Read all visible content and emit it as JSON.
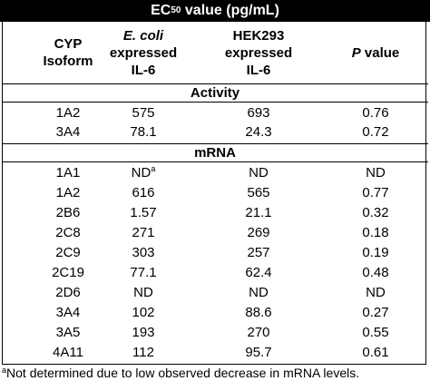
{
  "title": {
    "prefix": "EC",
    "sub": "50",
    "suffix": " value (pg/mL)"
  },
  "headers": {
    "cyp": [
      "CYP",
      "Isoform"
    ],
    "ecoli": [
      "E. coli",
      "expressed",
      "IL-6"
    ],
    "hek": [
      "HEK293",
      "expressed",
      "IL-6"
    ],
    "pvalue_p": "P",
    "pvalue_rest": " value"
  },
  "sections": {
    "activity": "Activity",
    "mrna": "mRNA"
  },
  "activity_rows": [
    {
      "isoform": "1A2",
      "ecoli": "575",
      "ecoli_sup": "",
      "hek": "693",
      "p": "0.76"
    },
    {
      "isoform": "3A4",
      "ecoli": "78.1",
      "ecoli_sup": "",
      "hek": "24.3",
      "p": "0.72"
    }
  ],
  "mrna_rows": [
    {
      "isoform": "1A1",
      "ecoli": "ND",
      "ecoli_sup": "a",
      "hek": "ND",
      "p": "ND"
    },
    {
      "isoform": "1A2",
      "ecoli": "616",
      "ecoli_sup": "",
      "hek": "565",
      "p": "0.77"
    },
    {
      "isoform": "2B6",
      "ecoli": "1.57",
      "ecoli_sup": "",
      "hek": "21.1",
      "p": "0.32"
    },
    {
      "isoform": "2C8",
      "ecoli": "271",
      "ecoli_sup": "",
      "hek": "269",
      "p": "0.18"
    },
    {
      "isoform": "2C9",
      "ecoli": "303",
      "ecoli_sup": "",
      "hek": "257",
      "p": "0.19"
    },
    {
      "isoform": "2C19",
      "ecoli": "77.1",
      "ecoli_sup": "",
      "hek": "62.4",
      "p": "0.48"
    },
    {
      "isoform": "2D6",
      "ecoli": "ND",
      "ecoli_sup": "",
      "hek": "ND",
      "p": "ND"
    },
    {
      "isoform": "3A4",
      "ecoli": "102",
      "ecoli_sup": "",
      "hek": "88.6",
      "p": "0.27"
    },
    {
      "isoform": "3A5",
      "ecoli": "193",
      "ecoli_sup": "",
      "hek": "270",
      "p": "0.55"
    },
    {
      "isoform": "4A11",
      "ecoli": "112",
      "ecoli_sup": "",
      "hek": "95.7",
      "p": "0.61"
    }
  ],
  "footnote": {
    "marker": "a",
    "text": "Not determined due to low observed decrease in mRNA levels."
  }
}
